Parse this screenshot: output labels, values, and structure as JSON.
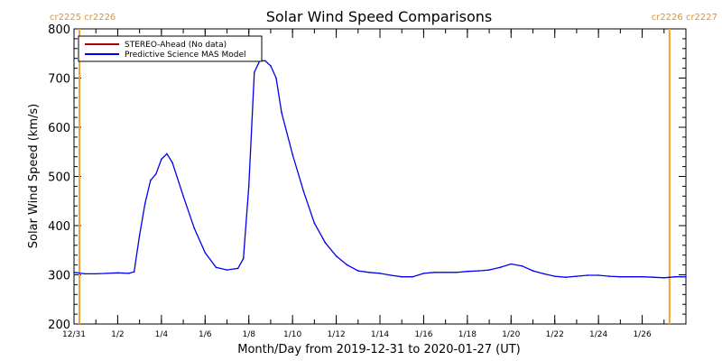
{
  "chart_data": {
    "type": "line",
    "title": "Solar Wind Speed Comparisons",
    "xlabel": "Month/Day from 2019-12-31 to 2020-01-27 (UT)",
    "ylabel": "Solar Wind Speed (km/s)",
    "ylim": [
      200,
      800
    ],
    "xlim": [
      "2019-12-31T00:00",
      "2020-01-28T00:00"
    ],
    "yticks": [
      200,
      300,
      400,
      500,
      600,
      700,
      800
    ],
    "xticks": [
      {
        "date": "2019-12-31",
        "label": "12/31"
      },
      {
        "date": "2020-01-02",
        "label": "1/2"
      },
      {
        "date": "2020-01-04",
        "label": "1/4"
      },
      {
        "date": "2020-01-06",
        "label": "1/6"
      },
      {
        "date": "2020-01-08",
        "label": "1/8"
      },
      {
        "date": "2020-01-10",
        "label": "1/10"
      },
      {
        "date": "2020-01-12",
        "label": "1/12"
      },
      {
        "date": "2020-01-14",
        "label": "1/14"
      },
      {
        "date": "2020-01-16",
        "label": "1/16"
      },
      {
        "date": "2020-01-18",
        "label": "1/18"
      },
      {
        "date": "2020-01-20",
        "label": "1/20"
      },
      {
        "date": "2020-01-22",
        "label": "1/22"
      },
      {
        "date": "2020-01-24",
        "label": "1/24"
      },
      {
        "date": "2020-01-26",
        "label": "1/26"
      }
    ],
    "carrington_markers": [
      {
        "date": "2019-12-31T06:00",
        "label": "cr2225 cr2226",
        "align": "start"
      },
      {
        "date": "2020-01-27T06:00",
        "label": "cr2226 cr2227",
        "align": "end"
      }
    ],
    "legend_position": "top-left",
    "series": [
      {
        "name": "STEREO-Ahead (No data)",
        "color": "#b00000",
        "x": [],
        "values": []
      },
      {
        "name": "Predictive Science MAS Model",
        "color": "#0000ee",
        "x": [
          "2019-12-31T00:00",
          "2019-12-31T12:00",
          "2020-01-01T00:00",
          "2020-01-01T12:00",
          "2020-01-02T00:00",
          "2020-01-02T12:00",
          "2020-01-02T18:00",
          "2020-01-03T00:00",
          "2020-01-03T06:00",
          "2020-01-03T12:00",
          "2020-01-03T18:00",
          "2020-01-04T00:00",
          "2020-01-04T06:00",
          "2020-01-04T12:00",
          "2020-01-05T00:00",
          "2020-01-05T12:00",
          "2020-01-06T00:00",
          "2020-01-06T12:00",
          "2020-01-07T00:00",
          "2020-01-07T12:00",
          "2020-01-07T18:00",
          "2020-01-08T00:00",
          "2020-01-08T06:00",
          "2020-01-08T12:00",
          "2020-01-08T18:00",
          "2020-01-09T00:00",
          "2020-01-09T06:00",
          "2020-01-09T12:00",
          "2020-01-10T00:00",
          "2020-01-10T12:00",
          "2020-01-11T00:00",
          "2020-01-11T12:00",
          "2020-01-12T00:00",
          "2020-01-12T12:00",
          "2020-01-13T00:00",
          "2020-01-13T12:00",
          "2020-01-14T00:00",
          "2020-01-14T12:00",
          "2020-01-15T00:00",
          "2020-01-15T12:00",
          "2020-01-16T00:00",
          "2020-01-16T12:00",
          "2020-01-17T00:00",
          "2020-01-17T12:00",
          "2020-01-18T00:00",
          "2020-01-18T12:00",
          "2020-01-19T00:00",
          "2020-01-19T12:00",
          "2020-01-20T00:00",
          "2020-01-20T12:00",
          "2020-01-21T00:00",
          "2020-01-21T12:00",
          "2020-01-22T00:00",
          "2020-01-22T12:00",
          "2020-01-23T00:00",
          "2020-01-23T12:00",
          "2020-01-24T00:00",
          "2020-01-24T12:00",
          "2020-01-25T00:00",
          "2020-01-25T12:00",
          "2020-01-26T00:00",
          "2020-01-26T12:00",
          "2020-01-27T00:00",
          "2020-01-27T12:00",
          "2020-01-28T00:00"
        ],
        "values": [
          305,
          302,
          302,
          303,
          304,
          303,
          306,
          380,
          445,
          492,
          505,
          535,
          546,
          528,
          460,
          395,
          345,
          315,
          310,
          313,
          333,
          480,
          712,
          735,
          735,
          725,
          700,
          630,
          545,
          470,
          405,
          365,
          338,
          320,
          308,
          305,
          303,
          299,
          296,
          296,
          303,
          305,
          305,
          305,
          307,
          308,
          310,
          315,
          322,
          318,
          308,
          302,
          297,
          295,
          297,
          299,
          299,
          297,
          296,
          296,
          296,
          295,
          294,
          296,
          296
        ]
      }
    ]
  }
}
